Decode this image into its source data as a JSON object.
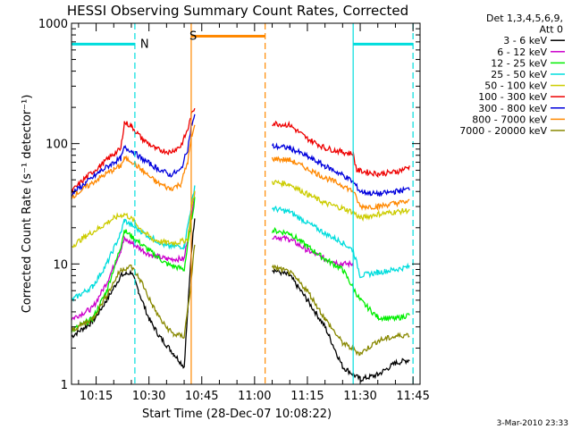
{
  "chart_data": {
    "type": "line",
    "title": "HESSI Observing Summary Count Rates, Corrected",
    "xlabel": "Start Time (28-Dec-07 10:08:22)",
    "ylabel": "Corrected Count Rate (s⁻¹ detector⁻¹)",
    "ylog": true,
    "ylim": [
      1,
      1000
    ],
    "xlim": [
      "10:08",
      "11:47"
    ],
    "xticks": [
      "10:15",
      "10:30",
      "10:45",
      "11:00",
      "11:15",
      "11:30",
      "11:45"
    ],
    "yticks": [
      "1",
      "10",
      "100",
      "1000"
    ],
    "legend_title": [
      "Det 1,3,4,5,6,9,",
      "Att 0"
    ],
    "footer": "3-Mar-2010 23:33",
    "series": [
      {
        "name": "3 - 6 keV",
        "color": "#000000",
        "points": [
          [
            "10:08",
            2.5
          ],
          [
            "10:14",
            3.3
          ],
          [
            "10:18",
            5
          ],
          [
            "10:22",
            8
          ],
          [
            "10:25",
            8.5
          ],
          [
            "10:27",
            6
          ],
          [
            "10:30",
            3.5
          ],
          [
            "10:33",
            2.5
          ],
          [
            "10:37",
            1.8
          ],
          [
            "10:40",
            1.4
          ],
          [
            "10:41",
            4
          ],
          [
            "10:42",
            12
          ],
          [
            "10:43",
            25
          ],
          [
            "GAP",
            0
          ],
          [
            "11:05",
            9
          ],
          [
            "11:10",
            8
          ],
          [
            "11:15",
            5
          ],
          [
            "11:20",
            3
          ],
          [
            "11:25",
            1.4
          ],
          [
            "11:30",
            1.1
          ],
          [
            "11:35",
            1.2
          ],
          [
            "11:40",
            1.5
          ],
          [
            "11:44",
            1.6
          ]
        ]
      },
      {
        "name": "6 - 12 keV",
        "color": "#cc00cc",
        "points": [
          [
            "10:08",
            3.5
          ],
          [
            "10:14",
            4.3
          ],
          [
            "10:18",
            7
          ],
          [
            "10:22",
            13
          ],
          [
            "10:23",
            16
          ],
          [
            "10:25",
            15
          ],
          [
            "10:30",
            12
          ],
          [
            "10:35",
            11
          ],
          [
            "10:40",
            11
          ],
          [
            "10:42",
            25
          ],
          [
            "10:43",
            38
          ],
          [
            "GAP",
            0
          ],
          [
            "11:05",
            17
          ],
          [
            "11:10",
            16
          ],
          [
            "11:15",
            13
          ],
          [
            "11:20",
            11
          ],
          [
            "11:25",
            10
          ],
          [
            "11:28",
            10
          ]
        ]
      },
      {
        "name": "12 - 25 keV",
        "color": "#00ee00",
        "points": [
          [
            "10:08",
            2.8
          ],
          [
            "10:14",
            3.5
          ],
          [
            "10:18",
            6
          ],
          [
            "10:22",
            14
          ],
          [
            "10:23",
            19
          ],
          [
            "10:25",
            17
          ],
          [
            "10:30",
            13
          ],
          [
            "10:35",
            10
          ],
          [
            "10:40",
            9
          ],
          [
            "10:42",
            22
          ],
          [
            "10:43",
            35
          ],
          [
            "GAP",
            0
          ],
          [
            "11:05",
            19
          ],
          [
            "11:10",
            18
          ],
          [
            "11:15",
            14
          ],
          [
            "11:20",
            11
          ],
          [
            "11:25",
            9
          ],
          [
            "11:30",
            5
          ],
          [
            "11:35",
            3.6
          ],
          [
            "11:40",
            3.5
          ],
          [
            "11:44",
            3.8
          ]
        ]
      },
      {
        "name": "25 - 50 keV",
        "color": "#00dddd",
        "points": [
          [
            "10:08",
            5
          ],
          [
            "10:14",
            6.5
          ],
          [
            "10:18",
            10
          ],
          [
            "10:22",
            18
          ],
          [
            "10:23",
            23
          ],
          [
            "10:25",
            21
          ],
          [
            "10:30",
            17
          ],
          [
            "10:35",
            14
          ],
          [
            "10:40",
            14
          ],
          [
            "10:42",
            30
          ],
          [
            "10:43",
            45
          ],
          [
            "GAP",
            0
          ],
          [
            "11:05",
            29
          ],
          [
            "11:10",
            27
          ],
          [
            "11:15",
            22
          ],
          [
            "11:20",
            18
          ],
          [
            "11:25",
            15
          ],
          [
            "11:28",
            13
          ],
          [
            "11:30",
            8
          ],
          [
            "11:35",
            8.5
          ],
          [
            "11:40",
            9
          ],
          [
            "11:44",
            9.5
          ]
        ]
      },
      {
        "name": "50 - 100 keV",
        "color": "#cccc00",
        "points": [
          [
            "10:08",
            14
          ],
          [
            "10:12",
            17
          ],
          [
            "10:16",
            20
          ],
          [
            "10:20",
            24
          ],
          [
            "10:23",
            26
          ],
          [
            "10:25",
            24
          ],
          [
            "10:28",
            19
          ],
          [
            "10:31",
            16
          ],
          [
            "10:35",
            15
          ],
          [
            "10:38",
            15
          ],
          [
            "10:41",
            16
          ],
          [
            "10:42",
            28
          ],
          [
            "10:43",
            40
          ],
          [
            "GAP",
            0
          ],
          [
            "11:05",
            48
          ],
          [
            "11:10",
            46
          ],
          [
            "11:15",
            38
          ],
          [
            "11:20",
            32
          ],
          [
            "11:25",
            29
          ],
          [
            "11:28",
            27
          ],
          [
            "11:30",
            24
          ],
          [
            "11:35",
            26
          ],
          [
            "11:40",
            27
          ],
          [
            "11:44",
            28
          ]
        ]
      },
      {
        "name": "100 - 300 keV",
        "color": "#ee0000",
        "points": [
          [
            "10:08",
            40
          ],
          [
            "10:12",
            52
          ],
          [
            "10:16",
            65
          ],
          [
            "10:20",
            82
          ],
          [
            "10:22",
            90
          ],
          [
            "10:23",
            150
          ],
          [
            "10:25",
            140
          ],
          [
            "10:28",
            110
          ],
          [
            "10:32",
            90
          ],
          [
            "10:36",
            85
          ],
          [
            "10:39",
            95
          ],
          [
            "10:41",
            130
          ],
          [
            "10:42",
            170
          ],
          [
            "10:43",
            200
          ],
          [
            "GAP",
            0
          ],
          [
            "11:05",
            148
          ],
          [
            "11:10",
            142
          ],
          [
            "11:15",
            110
          ],
          [
            "11:20",
            92
          ],
          [
            "11:25",
            85
          ],
          [
            "11:28",
            82
          ],
          [
            "11:29",
            60
          ],
          [
            "11:35",
            56
          ],
          [
            "11:40",
            58
          ],
          [
            "11:44",
            64
          ]
        ]
      },
      {
        "name": "300 - 800 keV",
        "color": "#0000dd",
        "points": [
          [
            "10:08",
            38
          ],
          [
            "10:12",
            47
          ],
          [
            "10:16",
            58
          ],
          [
            "10:20",
            70
          ],
          [
            "10:22",
            75
          ],
          [
            "10:23",
            92
          ],
          [
            "10:25",
            88
          ],
          [
            "10:28",
            75
          ],
          [
            "10:32",
            63
          ],
          [
            "10:36",
            55
          ],
          [
            "10:39",
            60
          ],
          [
            "10:41",
            90
          ],
          [
            "10:42",
            140
          ],
          [
            "10:43",
            170
          ],
          [
            "GAP",
            0
          ],
          [
            "11:05",
            95
          ],
          [
            "11:10",
            92
          ],
          [
            "11:15",
            78
          ],
          [
            "11:20",
            65
          ],
          [
            "11:25",
            55
          ],
          [
            "11:28",
            48
          ],
          [
            "11:30",
            40
          ],
          [
            "11:35",
            38
          ],
          [
            "11:40",
            40
          ],
          [
            "11:44",
            42
          ]
        ]
      },
      {
        "name": "800 - 7000 keV",
        "color": "#ff8800",
        "points": [
          [
            "10:08",
            36
          ],
          [
            "10:12",
            43
          ],
          [
            "10:16",
            52
          ],
          [
            "10:20",
            61
          ],
          [
            "10:22",
            65
          ],
          [
            "10:23",
            75
          ],
          [
            "10:25",
            72
          ],
          [
            "10:28",
            60
          ],
          [
            "10:32",
            48
          ],
          [
            "10:36",
            42
          ],
          [
            "10:39",
            46
          ],
          [
            "10:41",
            70
          ],
          [
            "10:42",
            110
          ],
          [
            "10:43",
            140
          ],
          [
            "GAP",
            0
          ],
          [
            "11:05",
            75
          ],
          [
            "11:10",
            73
          ],
          [
            "11:15",
            62
          ],
          [
            "11:20",
            52
          ],
          [
            "11:25",
            45
          ],
          [
            "11:28",
            40
          ],
          [
            "11:30",
            30
          ],
          [
            "11:35",
            30
          ],
          [
            "11:40",
            32
          ],
          [
            "11:44",
            33
          ]
        ]
      },
      {
        "name": "7000 - 20000 keV",
        "color": "#888800",
        "points": [
          [
            "10:08",
            2.8
          ],
          [
            "10:14",
            3.5
          ],
          [
            "10:18",
            5.5
          ],
          [
            "10:22",
            9
          ],
          [
            "10:25",
            9.5
          ],
          [
            "10:28",
            7
          ],
          [
            "10:31",
            4.5
          ],
          [
            "10:34",
            3.2
          ],
          [
            "10:37",
            2.6
          ],
          [
            "10:40",
            2.5
          ],
          [
            "10:42",
            7
          ],
          [
            "10:43",
            15
          ],
          [
            "GAP",
            0
          ],
          [
            "11:05",
            9.5
          ],
          [
            "11:10",
            8.5
          ],
          [
            "11:15",
            6
          ],
          [
            "11:20",
            3.5
          ],
          [
            "11:25",
            2.2
          ],
          [
            "11:30",
            1.8
          ],
          [
            "11:35",
            2.3
          ],
          [
            "11:40",
            2.5
          ],
          [
            "11:44",
            2.6
          ]
        ]
      }
    ],
    "annotations": [
      {
        "label": "N",
        "color": "#00dddd",
        "bar_from": "10:08",
        "bar_to": "10:26",
        "line_at": "10:26",
        "bar_level": 670
      },
      {
        "label": "N",
        "color": "#00dddd",
        "bar_from": "11:28",
        "bar_to": "11:45",
        "line_at": "11:45",
        "bar_level": 670
      },
      {
        "label": "S",
        "color": "#ff8800",
        "bar_from": "10:42",
        "bar_to": "11:03",
        "line_at": "11:03",
        "bar_level": 780
      }
    ],
    "solid_lines": [
      {
        "at": "10:42",
        "color": "#ff8800"
      },
      {
        "at": "11:28",
        "color": "#00dddd"
      }
    ]
  }
}
